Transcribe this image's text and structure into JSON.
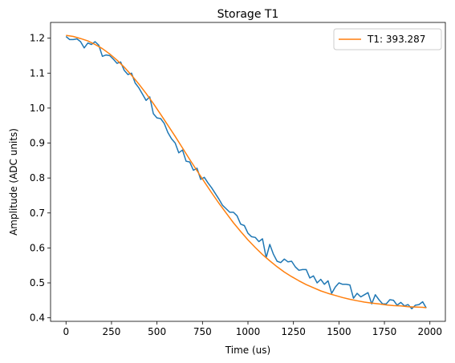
{
  "chart_data": {
    "type": "line",
    "title": "Storage T1",
    "xlabel": "Time (us)",
    "ylabel": "Amplitude (ADC units)",
    "xlim": [
      -85,
      2085
    ],
    "ylim": [
      0.39,
      1.245
    ],
    "xticks": [
      0,
      250,
      500,
      750,
      1000,
      1250,
      1500,
      1750,
      2000
    ],
    "yticks": [
      0.4,
      0.5,
      0.6,
      0.7,
      0.8,
      0.9,
      1.0,
      1.1,
      1.2
    ],
    "xtick_labels": [
      "0",
      "250",
      "500",
      "750",
      "1000",
      "1250",
      "1500",
      "1750",
      "2000"
    ],
    "ytick_labels": [
      "0.4",
      "0.5",
      "0.6",
      "0.7",
      "0.8",
      "0.9",
      "1.0",
      "1.1",
      "1.2"
    ],
    "grid": false,
    "legend": {
      "position": "top-right",
      "entries": [
        "T1: 393.287"
      ]
    },
    "series": [
      {
        "color": "#1f77b4",
        "x": [
          0,
          20,
          40,
          60,
          80,
          100,
          120,
          140,
          160,
          180,
          200,
          220,
          240,
          260,
          280,
          300,
          320,
          340,
          360,
          380,
          400,
          420,
          440,
          460,
          480,
          500,
          520,
          540,
          560,
          580,
          600,
          620,
          640,
          660,
          680,
          700,
          720,
          740,
          760,
          780,
          800,
          820,
          840,
          860,
          880,
          900,
          920,
          940,
          960,
          980,
          1000,
          1020,
          1040,
          1060,
          1080,
          1100,
          1120,
          1140,
          1160,
          1180,
          1200,
          1220,
          1240,
          1260,
          1280,
          1300,
          1320,
          1340,
          1360,
          1380,
          1400,
          1420,
          1440,
          1460,
          1480,
          1500,
          1520,
          1540,
          1560,
          1580,
          1600,
          1620,
          1640,
          1660,
          1680,
          1700,
          1720,
          1740,
          1760,
          1780,
          1800,
          1820,
          1840,
          1860,
          1880,
          1900,
          1920,
          1940,
          1960,
          1980
        ],
        "y": [
          1.205,
          1.196,
          1.196,
          1.198,
          1.19,
          1.172,
          1.186,
          1.182,
          1.19,
          1.18,
          1.148,
          1.152,
          1.15,
          1.14,
          1.128,
          1.132,
          1.108,
          1.096,
          1.1,
          1.072,
          1.058,
          1.04,
          1.022,
          1.032,
          0.984,
          0.972,
          0.97,
          0.956,
          0.93,
          0.912,
          0.9,
          0.872,
          0.88,
          0.848,
          0.846,
          0.822,
          0.828,
          0.796,
          0.802,
          0.786,
          0.772,
          0.756,
          0.74,
          0.722,
          0.712,
          0.702,
          0.702,
          0.692,
          0.668,
          0.664,
          0.642,
          0.632,
          0.63,
          0.618,
          0.626,
          0.572,
          0.61,
          0.582,
          0.562,
          0.558,
          0.568,
          0.56,
          0.562,
          0.546,
          0.536,
          0.538,
          0.538,
          0.514,
          0.52,
          0.5,
          0.51,
          0.496,
          0.506,
          0.47,
          0.488,
          0.5,
          0.496,
          0.496,
          0.494,
          0.456,
          0.47,
          0.46,
          0.466,
          0.472,
          0.44,
          0.466,
          0.452,
          0.44,
          0.44,
          0.452,
          0.45,
          0.436,
          0.444,
          0.434,
          0.438,
          0.426,
          0.436,
          0.438,
          0.446,
          0.428
        ]
      },
      {
        "name": "T1: 393.287",
        "color": "#ff7f0e",
        "x": [
          0,
          40,
          80,
          120,
          160,
          200,
          240,
          280,
          320,
          360,
          400,
          440,
          480,
          520,
          560,
          600,
          640,
          680,
          720,
          760,
          800,
          840,
          880,
          920,
          960,
          1000,
          1040,
          1080,
          1120,
          1160,
          1200,
          1240,
          1280,
          1320,
          1360,
          1400,
          1440,
          1480,
          1520,
          1560,
          1600,
          1640,
          1680,
          1720,
          1760,
          1800,
          1840,
          1880,
          1920,
          1960,
          1980
        ],
        "y": [
          1.208,
          1.205,
          1.199,
          1.192,
          1.182,
          1.17,
          1.155,
          1.137,
          1.117,
          1.094,
          1.069,
          1.042,
          1.013,
          0.982,
          0.951,
          0.919,
          0.886,
          0.853,
          0.821,
          0.789,
          0.758,
          0.728,
          0.7,
          0.672,
          0.647,
          0.623,
          0.601,
          0.581,
          0.563,
          0.546,
          0.531,
          0.518,
          0.506,
          0.495,
          0.486,
          0.477,
          0.47,
          0.464,
          0.458,
          0.453,
          0.449,
          0.445,
          0.442,
          0.44,
          0.437,
          0.435,
          0.434,
          0.432,
          0.431,
          0.43,
          0.429
        ]
      }
    ]
  }
}
